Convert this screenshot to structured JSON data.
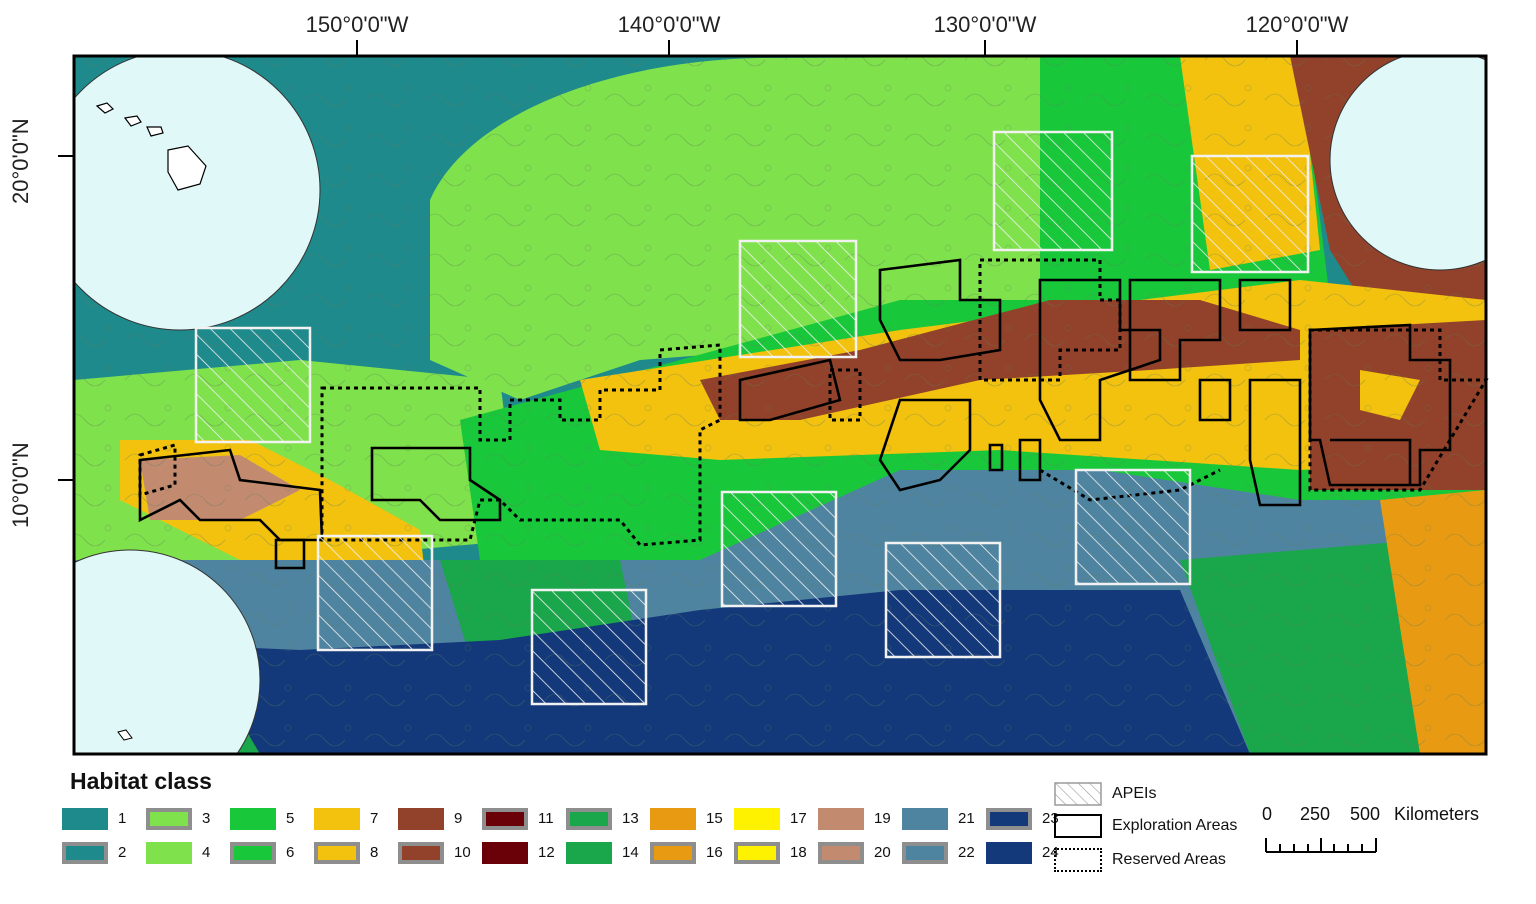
{
  "map": {
    "longitude_labels": [
      "150°0'0\"W",
      "140°0'0\"W",
      "130°0'0\"W",
      "120°0'0\"W"
    ],
    "latitude_labels": [
      "20°0'0\"N",
      "10°0'0\"N"
    ],
    "colors": {
      "land_circle": "#e0f8f8",
      "frame": "#000000",
      "apei_outline": "#f2f2f2",
      "exploration_outline": "#000000",
      "reserved_outline": "#000000"
    }
  },
  "legend": {
    "title": "Habitat class",
    "classes": [
      {
        "num": "1",
        "color": "#1f8a8c",
        "outlined": false
      },
      {
        "num": "2",
        "color": "#1f8a8c",
        "outlined": true
      },
      {
        "num": "3",
        "color": "#7fe14b",
        "outlined": true
      },
      {
        "num": "4",
        "color": "#7fe14b",
        "outlined": false
      },
      {
        "num": "5",
        "color": "#19c83a",
        "outlined": false
      },
      {
        "num": "6",
        "color": "#19c83a",
        "outlined": true
      },
      {
        "num": "7",
        "color": "#f2c20f",
        "outlined": false
      },
      {
        "num": "8",
        "color": "#f2c20f",
        "outlined": true
      },
      {
        "num": "9",
        "color": "#92422a",
        "outlined": false
      },
      {
        "num": "10",
        "color": "#92422a",
        "outlined": true
      },
      {
        "num": "11",
        "color": "#6a0008",
        "outlined": true
      },
      {
        "num": "12",
        "color": "#6a0008",
        "outlined": false
      },
      {
        "num": "13",
        "color": "#1aa64a",
        "outlined": true
      },
      {
        "num": "14",
        "color": "#1aa64a",
        "outlined": false
      },
      {
        "num": "15",
        "color": "#e89b12",
        "outlined": false
      },
      {
        "num": "16",
        "color": "#e89b12",
        "outlined": true
      },
      {
        "num": "17",
        "color": "#fff200",
        "outlined": false
      },
      {
        "num": "18",
        "color": "#fff200",
        "outlined": true
      },
      {
        "num": "19",
        "color": "#c28b70",
        "outlined": false
      },
      {
        "num": "20",
        "color": "#c28b70",
        "outlined": true
      },
      {
        "num": "21",
        "color": "#4f84a0",
        "outlined": false
      },
      {
        "num": "22",
        "color": "#4f84a0",
        "outlined": true
      },
      {
        "num": "23",
        "color": "#13397a",
        "outlined": true
      },
      {
        "num": "24",
        "color": "#13397a",
        "outlined": false
      }
    ],
    "keys": {
      "apei": "APEIs",
      "exploration": "Exploration Areas",
      "reserved": "Reserved Areas"
    },
    "scale": {
      "t0": "0",
      "t250": "250",
      "t500": "500",
      "unit": "Kilometers"
    }
  }
}
